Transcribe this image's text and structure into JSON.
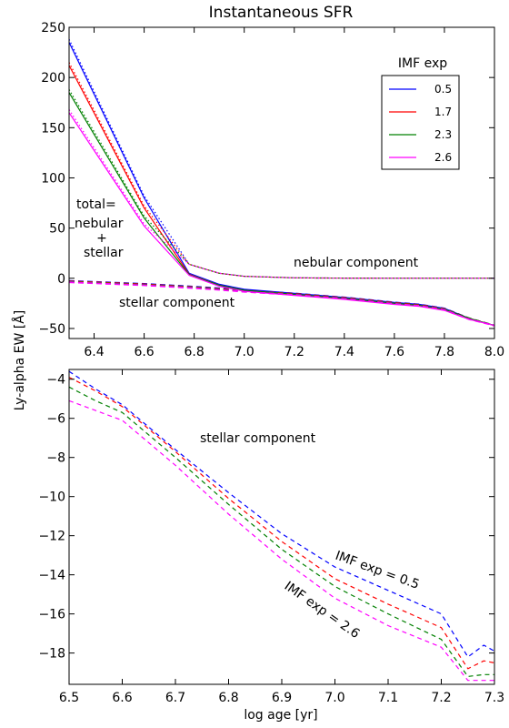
{
  "chart_data": [
    {
      "type": "line",
      "title": "Instantaneous SFR",
      "xlabel": "",
      "ylabel": "Ly-alpha EW [Å]",
      "xlim": [
        6.3,
        8.0
      ],
      "ylim": [
        -60,
        250
      ],
      "xticks": [
        "6.4",
        "6.6",
        "6.8",
        "7.0",
        "7.2",
        "7.4",
        "7.6",
        "7.8",
        "8.0"
      ],
      "yticks": [
        "250",
        "200",
        "150",
        "100",
        "50",
        "0",
        "−50"
      ],
      "legend": {
        "title": "IMF exp",
        "position": "top-right",
        "labels": [
          "0.5",
          "1.7",
          "2.3",
          "2.6"
        ]
      },
      "annotations": {
        "total": "total=",
        "nebular": "nebular",
        "plus": "+",
        "stellar": "stellar",
        "nebular_component": "nebular component",
        "stellar_component": "stellar component"
      },
      "series": [
        {
          "name": "0.5",
          "color": "#0000ff",
          "x": [
            6.3,
            6.6,
            6.78,
            6.9,
            7.0,
            7.2,
            7.3,
            7.4,
            7.6,
            7.7,
            7.8,
            7.9,
            8.0
          ],
          "total": [
            235,
            80,
            5,
            -6,
            -11,
            -15,
            -17,
            -19,
            -24,
            -26,
            -30,
            -40,
            -47
          ],
          "nebular": [
            238,
            82,
            14,
            5,
            2,
            0.5,
            0.3,
            0.2,
            0.1,
            0.1,
            0.1,
            0.1,
            0.1
          ],
          "stellar": [
            -2.5,
            -5.5,
            -8,
            -10,
            -12,
            -15,
            -17,
            -19,
            -24,
            -26,
            -30,
            -40,
            -47
          ]
        },
        {
          "name": "1.7",
          "color": "#ff0000",
          "x": [
            6.3,
            6.6,
            6.78,
            6.9,
            7.0,
            7.2,
            7.3,
            7.4,
            7.6,
            7.7,
            7.8,
            7.9,
            8.0
          ],
          "total": [
            212,
            70,
            4,
            -7,
            -12,
            -16,
            -18,
            -20,
            -25,
            -27,
            -31,
            -40,
            -47
          ],
          "nebular": [
            215,
            72,
            14,
            5,
            2,
            0.5,
            0.3,
            0.2,
            0.1,
            0.1,
            0.1,
            0.1,
            0.1
          ],
          "stellar": [
            -3,
            -6,
            -8.5,
            -10.5,
            -12.5,
            -15.5,
            -17.5,
            -19.5,
            -24.5,
            -26.5,
            -30.5,
            -40,
            -47
          ]
        },
        {
          "name": "2.3",
          "color": "#008000",
          "x": [
            6.3,
            6.6,
            6.78,
            6.9,
            7.0,
            7.2,
            7.3,
            7.4,
            7.6,
            7.7,
            7.8,
            7.9,
            8.0
          ],
          "total": [
            185,
            60,
            3.5,
            -7,
            -12,
            -16,
            -18,
            -20,
            -25,
            -27,
            -31,
            -40,
            -47
          ],
          "nebular": [
            188,
            62,
            14,
            5,
            2,
            0.5,
            0.3,
            0.2,
            0.1,
            0.1,
            0.1,
            0.1,
            0.1
          ],
          "stellar": [
            -3.5,
            -6.5,
            -9,
            -11,
            -13,
            -16,
            -18,
            -20,
            -25,
            -27,
            -31,
            -40,
            -47
          ]
        },
        {
          "name": "2.6",
          "color": "#ff00ff",
          "x": [
            6.3,
            6.6,
            6.78,
            6.9,
            7.0,
            7.2,
            7.3,
            7.4,
            7.6,
            7.7,
            7.8,
            7.9,
            8.0
          ],
          "total": [
            165,
            52,
            3,
            -8,
            -13,
            -17,
            -19,
            -21,
            -26,
            -28,
            -32,
            -41,
            -47
          ],
          "nebular": [
            168,
            54,
            14,
            5,
            2,
            0.5,
            0.3,
            0.2,
            0.1,
            0.1,
            0.1,
            0.1,
            0.1
          ],
          "stellar": [
            -4,
            -7,
            -9.5,
            -11.5,
            -13.5,
            -16.5,
            -18.5,
            -20.5,
            -25.5,
            -27.5,
            -31.5,
            -41,
            -47
          ]
        }
      ]
    },
    {
      "type": "line",
      "title": "",
      "xlabel": "log age [yr]",
      "ylabel": "Ly-alpha EW [Å]",
      "xlim": [
        6.5,
        7.3
      ],
      "ylim": [
        -19.6,
        -3.5
      ],
      "xticks": [
        "6.5",
        "6.6",
        "6.7",
        "6.8",
        "6.9",
        "7.0",
        "7.1",
        "7.2",
        "7.3"
      ],
      "yticks": [
        "−4",
        "−6",
        "−8",
        "−10",
        "−12",
        "−14",
        "−16",
        "−18"
      ],
      "annotations": {
        "stellar_component": "stellar component",
        "imf_high": "IMF exp = 0.5",
        "imf_low": "IMF exp = 2.6"
      },
      "x": [
        6.5,
        6.55,
        6.6,
        6.7,
        6.8,
        6.9,
        7.0,
        7.1,
        7.2,
        7.25,
        7.28,
        7.3
      ],
      "series": [
        {
          "name": "0.5",
          "color": "#0000ff",
          "values": [
            -3.6,
            -4.5,
            -5.3,
            -7.6,
            -9.8,
            -11.9,
            -13.6,
            -14.8,
            -16.0,
            -18.2,
            -17.6,
            -17.9
          ]
        },
        {
          "name": "1.7",
          "color": "#ff0000",
          "values": [
            -3.9,
            -4.6,
            -5.4,
            -7.7,
            -10.1,
            -12.3,
            -14.2,
            -15.5,
            -16.7,
            -18.8,
            -18.4,
            -18.5
          ]
        },
        {
          "name": "2.3",
          "color": "#008000",
          "values": [
            -4.4,
            -5.1,
            -5.7,
            -8.0,
            -10.4,
            -12.7,
            -14.6,
            -16.0,
            -17.3,
            -19.2,
            -19.1,
            -19.1
          ]
        },
        {
          "name": "2.6",
          "color": "#ff00ff",
          "values": [
            -5.1,
            -5.6,
            -6.1,
            -8.4,
            -10.9,
            -13.2,
            -15.2,
            -16.6,
            -17.7,
            -19.4,
            -19.4,
            -19.4
          ]
        }
      ]
    }
  ]
}
